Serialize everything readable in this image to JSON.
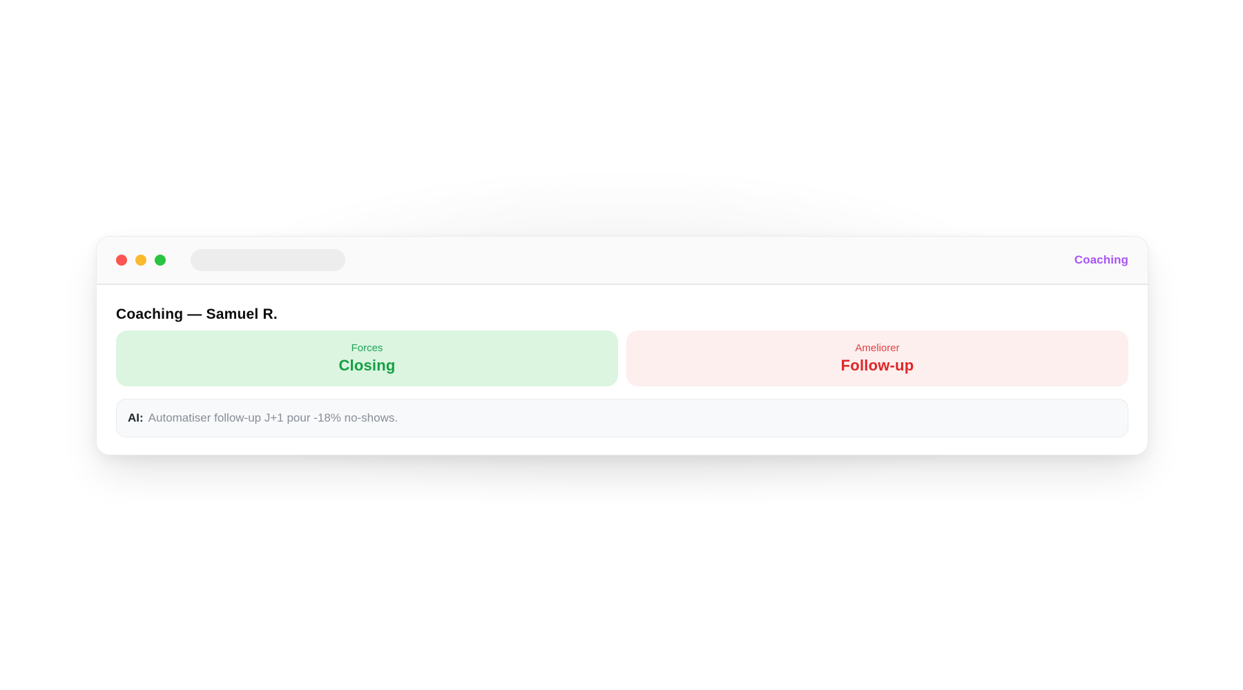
{
  "window": {
    "nav_label": "Coaching",
    "accent_color": "#a855f7",
    "traffic_light_colors": {
      "close": "#fa5550",
      "minimize": "#f9ba2b",
      "zoom": "#2bc440"
    }
  },
  "coaching": {
    "title": "Coaching — Samuel R.",
    "cards": [
      {
        "label": "Forces",
        "value": "Closing",
        "bg_color": "#dbf5e1",
        "label_color": "#1fa355",
        "value_color": "#15a043"
      },
      {
        "label": "Ameliorer",
        "value": "Follow-up",
        "bg_color": "#fdefee",
        "label_color": "#e04343",
        "value_color": "#dd2727"
      }
    ],
    "ai_note": {
      "prefix": "AI:",
      "text": "Automatiser follow-up J+1 pour -18% no-shows."
    }
  }
}
